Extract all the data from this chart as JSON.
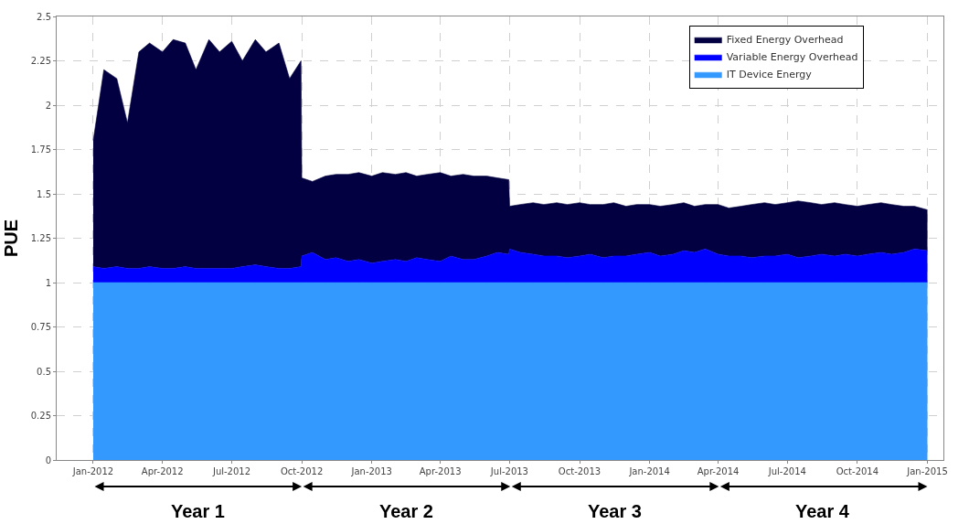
{
  "chart_data": {
    "type": "area",
    "stacked": true,
    "ylabel": "PUE",
    "x": [
      "2012-01-01",
      "2012-01-15",
      "2012-02-01",
      "2012-02-15",
      "2012-03-01",
      "2012-03-15",
      "2012-04-01",
      "2012-04-15",
      "2012-05-01",
      "2012-05-15",
      "2012-06-01",
      "2012-06-15",
      "2012-07-01",
      "2012-07-15",
      "2012-08-01",
      "2012-08-15",
      "2012-09-01",
      "2012-09-15",
      "2012-09-30",
      "2012-10-01",
      "2012-10-15",
      "2012-11-01",
      "2012-11-15",
      "2012-12-01",
      "2012-12-15",
      "2013-01-01",
      "2013-01-15",
      "2013-02-01",
      "2013-02-15",
      "2013-03-01",
      "2013-03-15",
      "2013-04-01",
      "2013-04-15",
      "2013-05-01",
      "2013-05-15",
      "2013-06-01",
      "2013-06-15",
      "2013-06-30",
      "2013-07-01",
      "2013-07-15",
      "2013-08-01",
      "2013-08-15",
      "2013-09-01",
      "2013-09-15",
      "2013-10-01",
      "2013-10-15",
      "2013-11-01",
      "2013-11-15",
      "2013-12-01",
      "2013-12-15",
      "2014-01-01",
      "2014-01-15",
      "2014-02-01",
      "2014-02-15",
      "2014-03-01",
      "2014-03-15",
      "2014-04-01",
      "2014-04-15",
      "2014-05-01",
      "2014-05-15",
      "2014-06-01",
      "2014-06-15",
      "2014-07-01",
      "2014-07-15",
      "2014-08-01",
      "2014-08-15",
      "2014-09-01",
      "2014-09-15",
      "2014-10-01",
      "2014-10-15",
      "2014-11-01",
      "2014-11-15",
      "2014-12-01",
      "2014-12-15",
      "2015-01-01"
    ],
    "series": [
      {
        "name": "IT Device Energy",
        "color": "#3399ff",
        "values": [
          1,
          1,
          1,
          1,
          1,
          1,
          1,
          1,
          1,
          1,
          1,
          1,
          1,
          1,
          1,
          1,
          1,
          1,
          1,
          1,
          1,
          1,
          1,
          1,
          1,
          1,
          1,
          1,
          1,
          1,
          1,
          1,
          1,
          1,
          1,
          1,
          1,
          1,
          1,
          1,
          1,
          1,
          1,
          1,
          1,
          1,
          1,
          1,
          1,
          1,
          1,
          1,
          1,
          1,
          1,
          1,
          1,
          1,
          1,
          1,
          1,
          1,
          1,
          1,
          1,
          1,
          1,
          1,
          1,
          1,
          1,
          1,
          1,
          1,
          1
        ]
      },
      {
        "name": "Variable Energy Overhead",
        "color": "#0000ff",
        "values": [
          0.09,
          0.08,
          0.09,
          0.08,
          0.08,
          0.09,
          0.08,
          0.08,
          0.09,
          0.08,
          0.08,
          0.08,
          0.08,
          0.09,
          0.1,
          0.09,
          0.08,
          0.08,
          0.09,
          0.15,
          0.17,
          0.13,
          0.14,
          0.12,
          0.13,
          0.11,
          0.12,
          0.13,
          0.12,
          0.14,
          0.13,
          0.12,
          0.15,
          0.13,
          0.13,
          0.15,
          0.17,
          0.16,
          0.19,
          0.17,
          0.16,
          0.15,
          0.15,
          0.14,
          0.15,
          0.16,
          0.14,
          0.15,
          0.15,
          0.16,
          0.17,
          0.15,
          0.16,
          0.18,
          0.17,
          0.19,
          0.16,
          0.15,
          0.15,
          0.14,
          0.15,
          0.15,
          0.16,
          0.14,
          0.15,
          0.16,
          0.15,
          0.16,
          0.15,
          0.16,
          0.17,
          0.16,
          0.17,
          0.19,
          0.18
        ]
      },
      {
        "name": "Fixed Energy Overhead",
        "color": "#020040",
        "values": [
          0.71,
          1.12,
          1.06,
          0.82,
          1.22,
          1.26,
          1.22,
          1.29,
          1.26,
          1.12,
          1.29,
          1.22,
          1.28,
          1.16,
          1.27,
          1.21,
          1.27,
          1.07,
          1.16,
          0.44,
          0.4,
          0.47,
          0.47,
          0.49,
          0.49,
          0.49,
          0.5,
          0.48,
          0.5,
          0.46,
          0.48,
          0.5,
          0.45,
          0.48,
          0.47,
          0.45,
          0.42,
          0.42,
          0.24,
          0.27,
          0.29,
          0.29,
          0.3,
          0.3,
          0.3,
          0.28,
          0.3,
          0.3,
          0.28,
          0.28,
          0.27,
          0.28,
          0.28,
          0.27,
          0.26,
          0.25,
          0.28,
          0.27,
          0.28,
          0.3,
          0.3,
          0.29,
          0.29,
          0.32,
          0.3,
          0.28,
          0.3,
          0.28,
          0.28,
          0.28,
          0.28,
          0.28,
          0.26,
          0.24,
          0.23
        ]
      }
    ],
    "xlim": [
      "2011-11-14",
      "2015-01-22"
    ],
    "xticks": [
      {
        "value": "2012-01-01",
        "label": "Jan-2012"
      },
      {
        "value": "2012-04-01",
        "label": "Apr-2012"
      },
      {
        "value": "2012-07-01",
        "label": "Jul-2012"
      },
      {
        "value": "2012-10-01",
        "label": "Oct-2012"
      },
      {
        "value": "2013-01-01",
        "label": "Jan-2013"
      },
      {
        "value": "2013-04-01",
        "label": "Apr-2013"
      },
      {
        "value": "2013-07-01",
        "label": "Jul-2013"
      },
      {
        "value": "2013-10-01",
        "label": "Oct-2013"
      },
      {
        "value": "2014-01-01",
        "label": "Jan-2014"
      },
      {
        "value": "2014-04-01",
        "label": "Apr-2014"
      },
      {
        "value": "2014-07-01",
        "label": "Jul-2014"
      },
      {
        "value": "2014-10-01",
        "label": "Oct-2014"
      },
      {
        "value": "2015-01-01",
        "label": "Jan-2015"
      }
    ],
    "ylim": [
      0,
      2.5
    ],
    "yticks": [
      0,
      0.25,
      0.5,
      0.75,
      1,
      1.25,
      1.5,
      1.75,
      2,
      2.25,
      2.5
    ],
    "grid": true,
    "legend": "top right",
    "annotations": [
      "Year 1",
      "Year 2",
      "Year 3",
      "Year 4"
    ]
  }
}
